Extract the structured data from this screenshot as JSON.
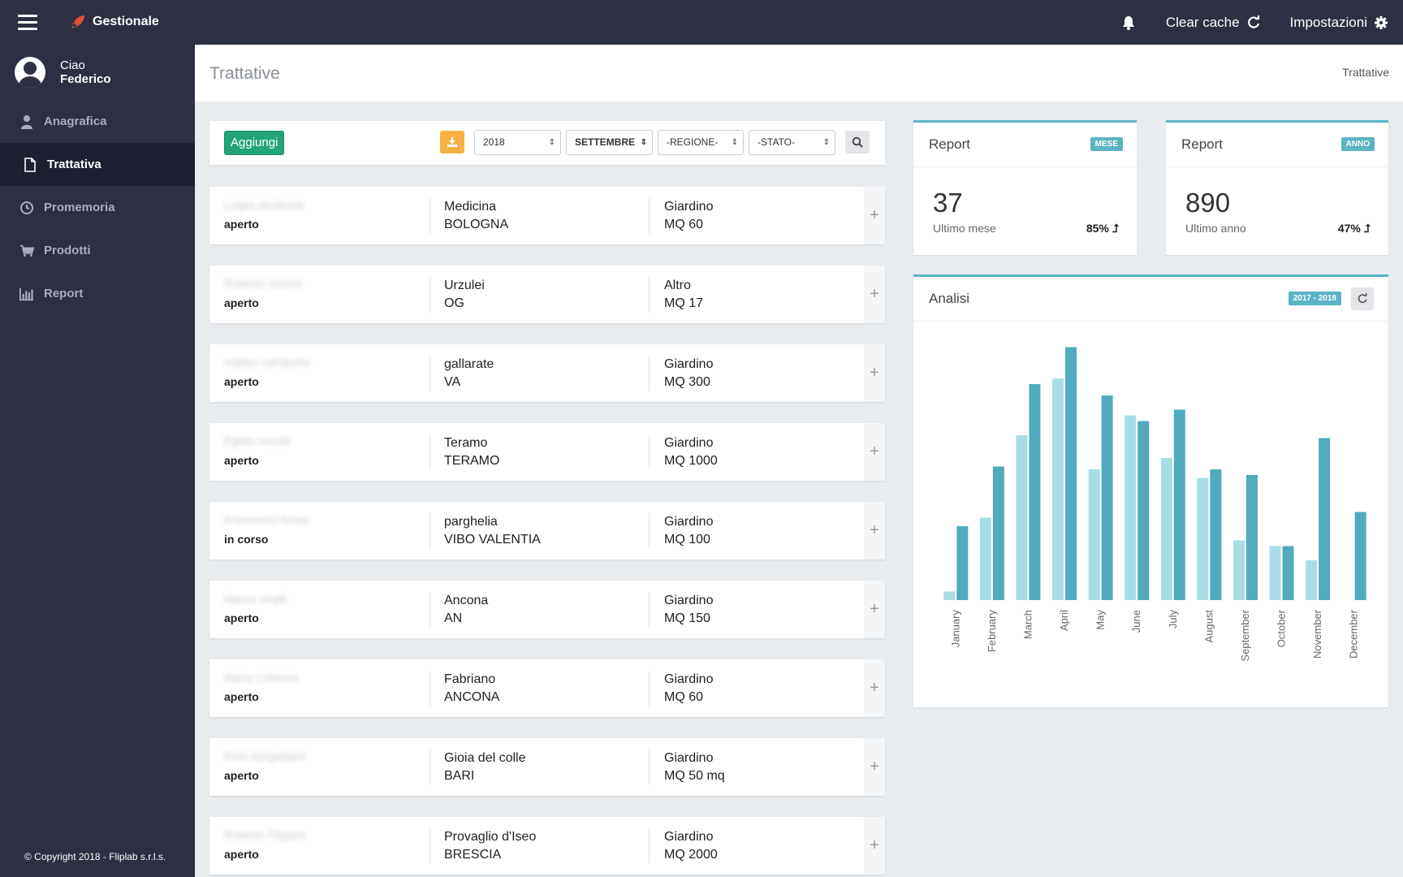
{
  "topbar": {
    "brand": "Gestionale",
    "clear_cache": "Clear cache",
    "settings": "Impostazioni"
  },
  "sidebar": {
    "greeting": "Ciao",
    "user_name": "Federico",
    "items": [
      {
        "label": "Anagrafica",
        "icon": "user-icon"
      },
      {
        "label": "Trattativa",
        "icon": "document-icon",
        "active": true
      },
      {
        "label": "Promemoria",
        "icon": "clock-icon"
      },
      {
        "label": "Prodotti",
        "icon": "cart-icon"
      },
      {
        "label": "Report",
        "icon": "bar-chart-icon"
      }
    ],
    "copyright": "© Copyright 2018 - Fliplab s.r.l.s."
  },
  "header": {
    "title": "Trattative",
    "breadcrumb": "Trattative"
  },
  "toolbar": {
    "add_label": "Aggiungi",
    "year": "2018",
    "month": "SETTEMBRE",
    "region": "-REGIONE-",
    "state": "-STATO-"
  },
  "deals": [
    {
      "name": "Luigia deufemia",
      "state": "aperto",
      "city": "Medicina",
      "province": "BOLOGNA",
      "type": "Giardino",
      "size": "MQ 60"
    },
    {
      "name": "Roberto murino",
      "state": "aperto",
      "city": "Urzulei",
      "province": "OG",
      "type": "Altro",
      "size": "MQ 17"
    },
    {
      "name": "matteo samperisi",
      "state": "aperto",
      "city": "gallarate",
      "province": "VA",
      "type": "Giardino",
      "size": "MQ 300"
    },
    {
      "name": "Egidio vercilli",
      "state": "aperto",
      "city": "Teramo",
      "province": "TERAMO",
      "type": "Giardino",
      "size": "MQ 1000"
    },
    {
      "name": "Francesco Rossi",
      "state": "in corso",
      "city": "parghelia",
      "province": "VIBO VALENTIA",
      "type": "Giardino",
      "size": "MQ 100"
    },
    {
      "name": "Marco Virgili",
      "state": "aperto",
      "city": "Ancona",
      "province": "AN",
      "type": "Giardino",
      "size": "MQ 150"
    },
    {
      "name": "Mario Colonna",
      "state": "aperto",
      "city": "Fabriano",
      "province": "ANCONA",
      "type": "Giardino",
      "size": "MQ 60"
    },
    {
      "name": "Elvio bergadano",
      "state": "aperto",
      "city": "Gioia del colle",
      "province": "BARI",
      "type": "Giardino",
      "size": "MQ 50 mq"
    },
    {
      "name": "Roberto Filippini",
      "state": "aperto",
      "city": "Provaglio d'Iseo",
      "province": "BRESCIA",
      "type": "Giardino",
      "size": "MQ 2000"
    }
  ],
  "report_month": {
    "title": "Report",
    "badge": "MESE",
    "value": "37",
    "label": "Ultimo mese",
    "percent": "85%"
  },
  "report_year": {
    "title": "Report",
    "badge": "ANNO",
    "value": "890",
    "label": "Ultimo anno",
    "percent": "47%"
  },
  "analisi": {
    "title": "Analisi",
    "badge": "2017 - 2018"
  },
  "colors": {
    "accent": "#5ab4c5",
    "series_2017": "#a9dde6",
    "series_2018": "#4fabbd",
    "sidebar": "#2c3042",
    "add_button": "#22a47a"
  },
  "chart_data": {
    "type": "bar",
    "categories": [
      "January",
      "February",
      "March",
      "April",
      "May",
      "June",
      "July",
      "August",
      "September",
      "October",
      "November",
      "December"
    ],
    "series": [
      {
        "values": [
          3,
          29,
          58,
          78,
          46,
          65,
          50,
          43,
          21,
          19,
          14,
          0
        ]
      },
      {
        "values": [
          26,
          47,
          76,
          89,
          72,
          63,
          67,
          46,
          44,
          19,
          57,
          31
        ]
      }
    ],
    "ylim": [
      0,
      90
    ],
    "grid": false,
    "legend": "none"
  }
}
